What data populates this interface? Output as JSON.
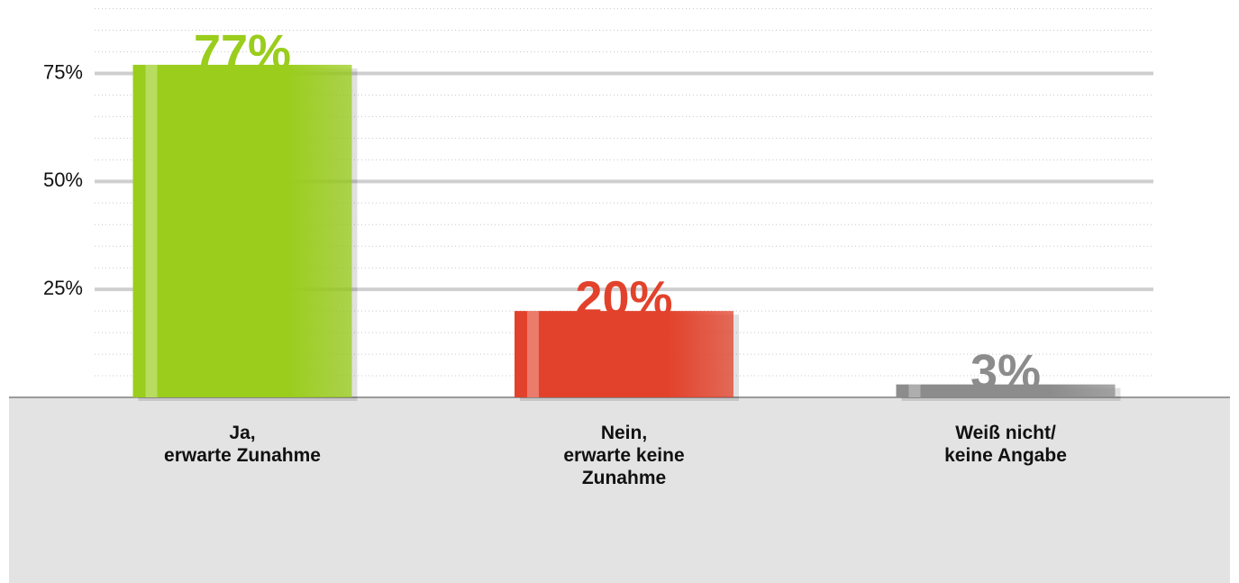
{
  "chart_data": {
    "type": "bar",
    "categories": [
      "Ja,\nerwarte Zunahme",
      "Nein,\nerwarte keine\nZunahme",
      "Weiß nicht/\nkeine Angabe"
    ],
    "values": [
      77,
      20,
      3
    ],
    "value_labels": [
      "77%",
      "20%",
      "3%"
    ],
    "colors": [
      "#9acd1c",
      "#e2422b",
      "#8c8c8c"
    ],
    "ylim": [
      0,
      92
    ],
    "yticks": [
      {
        "value": 25,
        "label": "25%"
      },
      {
        "value": 50,
        "label": "50%"
      },
      {
        "value": 75,
        "label": "75%"
      }
    ],
    "yticks_minor": [
      5,
      10,
      15,
      20,
      30,
      35,
      40,
      45,
      55,
      60,
      65,
      70,
      80,
      85,
      90
    ],
    "grid": true
  }
}
